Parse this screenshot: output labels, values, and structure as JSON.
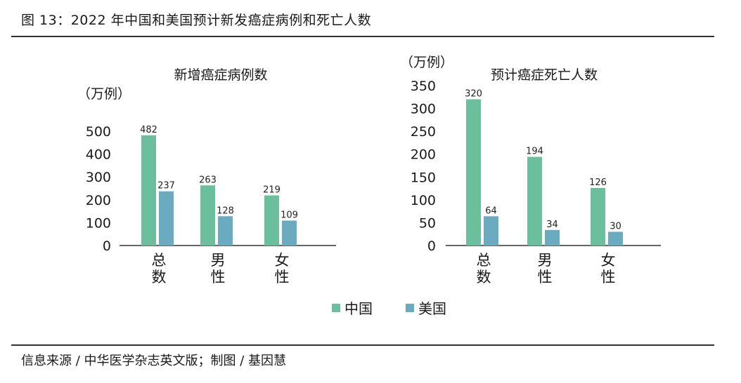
{
  "header": {
    "title": "图 13：2022 年中国和美国预计新发癌症病例和死亡人数"
  },
  "footer": {
    "source": "信息来源 / 中华医学杂志英文版；制图 / 基因慧"
  },
  "colors": {
    "china": "#6cbf9d",
    "usa": "#6aabbf",
    "axis": "#333333"
  },
  "legend": [
    {
      "name": "中国",
      "color": "#6cbf9d"
    },
    {
      "name": "美国",
      "color": "#6aabbf"
    }
  ],
  "chart_data": [
    {
      "type": "bar",
      "title": "新增癌症病例数",
      "unit": "（万例）",
      "categories": [
        [
          "总",
          "数"
        ],
        [
          "男",
          "性"
        ],
        [
          "女",
          "性"
        ]
      ],
      "yticks": [
        0,
        100,
        200,
        300,
        400,
        500
      ],
      "ylim": [
        0,
        560
      ],
      "series": [
        {
          "name": "中国",
          "values": [
            482,
            263,
            219
          ]
        },
        {
          "name": "美国",
          "values": [
            237,
            128,
            109
          ]
        }
      ]
    },
    {
      "type": "bar",
      "title": "预计癌症死亡人数",
      "unit": "（万例）",
      "categories": [
        [
          "总",
          "数"
        ],
        [
          "男",
          "性"
        ],
        [
          "女",
          "性"
        ]
      ],
      "yticks": [
        0,
        50,
        100,
        150,
        200,
        250,
        300,
        350
      ],
      "ylim": [
        0,
        350
      ],
      "series": [
        {
          "name": "中国",
          "values": [
            320,
            194,
            126
          ]
        },
        {
          "name": "美国",
          "values": [
            64,
            34,
            30
          ]
        }
      ]
    }
  ]
}
